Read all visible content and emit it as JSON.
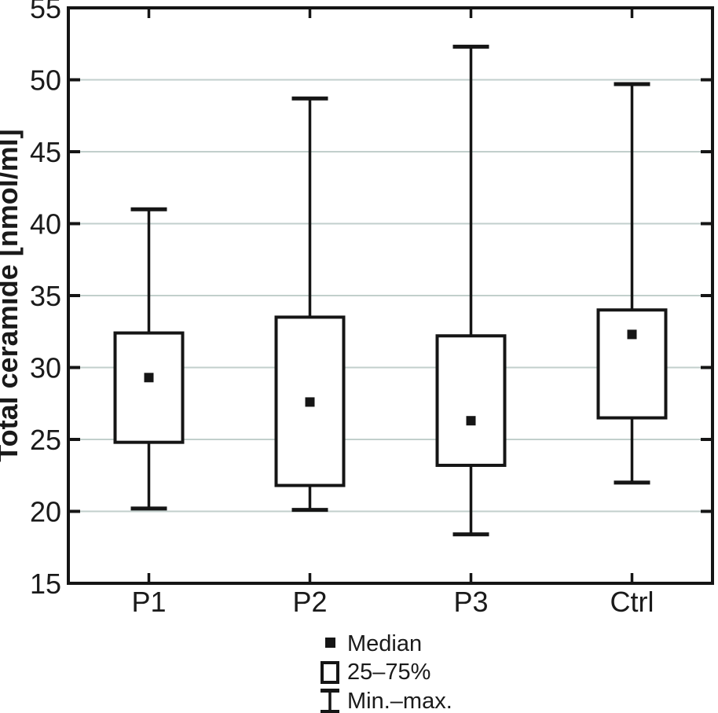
{
  "chart_data": {
    "type": "boxplot",
    "ylabel": "Total ceramide [nmol/ml]",
    "ylim": [
      15,
      55
    ],
    "yticks": [
      55,
      50,
      45,
      40,
      35,
      30,
      25,
      20,
      15
    ],
    "grid_values": [
      50,
      45,
      40,
      35,
      30,
      25,
      20
    ],
    "grid": "horizontal light lines at each 5-unit tick between 20 and 50",
    "categories": [
      "P1",
      "P2",
      "P3",
      "Ctrl"
    ],
    "series": [
      {
        "category": "P1",
        "min": 20.2,
        "q1": 24.8,
        "median": 29.3,
        "q3": 32.4,
        "max": 41.0
      },
      {
        "category": "P2",
        "min": 20.1,
        "q1": 21.8,
        "median": 27.6,
        "q3": 33.5,
        "max": 48.7
      },
      {
        "category": "P3",
        "min": 18.4,
        "q1": 23.2,
        "median": 26.3,
        "q3": 32.2,
        "max": 52.3
      },
      {
        "category": "Ctrl",
        "min": 22.0,
        "q1": 26.5,
        "median": 32.3,
        "q3": 34.0,
        "max": 49.7
      }
    ],
    "legend": [
      {
        "symbol": "filled-square",
        "label": "Median"
      },
      {
        "symbol": "open-box",
        "label": "25–75%"
      },
      {
        "symbol": "min-max-whisker",
        "label": "Min.–max."
      }
    ],
    "legend_position": "bottom-center",
    "colors": {
      "line": "#151515",
      "grid": "#c2cfcc",
      "text": "#1a1a1a",
      "background": "#ffffff"
    }
  }
}
